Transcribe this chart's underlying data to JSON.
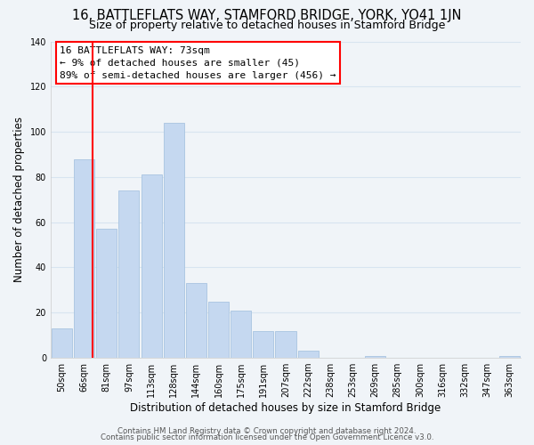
{
  "title": "16, BATTLEFLATS WAY, STAMFORD BRIDGE, YORK, YO41 1JN",
  "subtitle": "Size of property relative to detached houses in Stamford Bridge",
  "xlabel": "Distribution of detached houses by size in Stamford Bridge",
  "ylabel": "Number of detached properties",
  "footer_line1": "Contains HM Land Registry data © Crown copyright and database right 2024.",
  "footer_line2": "Contains public sector information licensed under the Open Government Licence v3.0.",
  "bar_labels": [
    "50sqm",
    "66sqm",
    "81sqm",
    "97sqm",
    "113sqm",
    "128sqm",
    "144sqm",
    "160sqm",
    "175sqm",
    "191sqm",
    "207sqm",
    "222sqm",
    "238sqm",
    "253sqm",
    "269sqm",
    "285sqm",
    "300sqm",
    "316sqm",
    "332sqm",
    "347sqm",
    "363sqm"
  ],
  "bar_values": [
    13,
    88,
    57,
    74,
    81,
    104,
    33,
    25,
    21,
    12,
    12,
    3,
    0,
    0,
    1,
    0,
    0,
    0,
    0,
    0,
    1
  ],
  "bar_color": "#c5d8f0",
  "ylim": [
    0,
    140
  ],
  "yticks": [
    0,
    20,
    40,
    60,
    80,
    100,
    120,
    140
  ],
  "reference_line_x": 1.38,
  "annotation_title": "16 BATTLEFLATS WAY: 73sqm",
  "annotation_line1": "← 9% of detached houses are smaller (45)",
  "annotation_line2": "89% of semi-detached houses are larger (456) →",
  "background_color": "#f0f4f8",
  "grid_color": "#d8e4f0",
  "title_fontsize": 10.5,
  "subtitle_fontsize": 9,
  "axis_label_fontsize": 8.5,
  "tick_fontsize": 7,
  "annotation_fontsize": 8
}
